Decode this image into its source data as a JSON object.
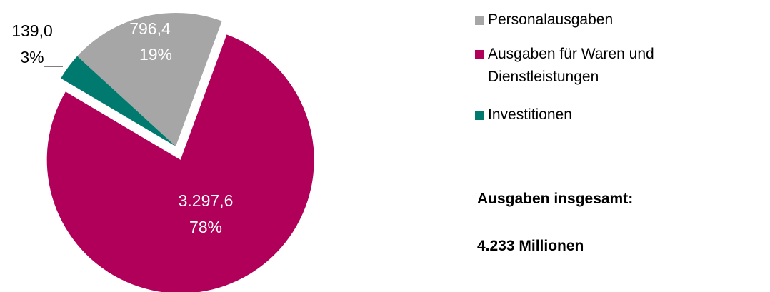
{
  "chart_data": {
    "type": "pie",
    "categories": [
      "Personalausgaben",
      "Ausgaben für Waren und Dienstleistungen",
      "Investitionen"
    ],
    "values": [
      796.4,
      3297.6,
      139.0
    ],
    "value_labels": [
      "796,4",
      "3.297,6",
      "139,0"
    ],
    "percentages": [
      19,
      78,
      3
    ],
    "percentage_labels": [
      "19%",
      "78%",
      "3%"
    ],
    "colors": [
      "#a6a6a6",
      "#b0005a",
      "#007a6e"
    ],
    "annotations": [
      "Ausgaben insgesamt:",
      "4.233 Millionen"
    ]
  }
}
